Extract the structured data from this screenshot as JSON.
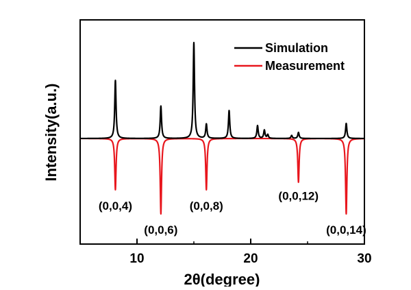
{
  "chart_data": {
    "type": "line",
    "xlabel": "2θ(degree)",
    "ylabel": "Intensity(a.u.)",
    "xlim": [
      5,
      30
    ],
    "ylim": [
      -1.0,
      1.3
    ],
    "baseline": 0,
    "xticks": [
      10,
      20,
      30
    ],
    "xtick_labels": [
      "10",
      "20",
      "30"
    ],
    "yticks_shown": false,
    "grid": false,
    "legend_position": "top-right",
    "series": [
      {
        "name": "Simulation",
        "color": "#000000",
        "direction": "up",
        "peaks": [
          {
            "x": 8.1,
            "y": 0.77
          },
          {
            "x": 12.1,
            "y": 0.43
          },
          {
            "x": 15.0,
            "y": 1.27
          },
          {
            "x": 16.1,
            "y": 0.19
          },
          {
            "x": 18.1,
            "y": 0.37
          },
          {
            "x": 20.6,
            "y": 0.17
          },
          {
            "x": 21.2,
            "y": 0.11
          },
          {
            "x": 21.5,
            "y": 0.05
          },
          {
            "x": 23.6,
            "y": 0.04
          },
          {
            "x": 24.2,
            "y": 0.08
          },
          {
            "x": 28.4,
            "y": 0.2
          }
        ]
      },
      {
        "name": "Measurement",
        "color": "#e8161d",
        "direction": "down",
        "peaks": [
          {
            "x": 8.1,
            "y": -0.68
          },
          {
            "x": 12.1,
            "y": -1.0
          },
          {
            "x": 16.1,
            "y": -0.68
          },
          {
            "x": 24.2,
            "y": -0.58
          },
          {
            "x": 28.4,
            "y": -1.0
          }
        ]
      }
    ],
    "annotations": [
      {
        "text": "(0,0,4)",
        "x": 8.1,
        "y": -0.88
      },
      {
        "text": "(0,0,6)",
        "x": 12.1,
        "y": -1.2
      },
      {
        "text": "(0,0,8)",
        "x": 16.1,
        "y": -0.88
      },
      {
        "text": "(0,0,12)",
        "x": 24.2,
        "y": -0.75
      },
      {
        "text": "(0,0,14)",
        "x": 28.4,
        "y": -1.2
      }
    ]
  }
}
